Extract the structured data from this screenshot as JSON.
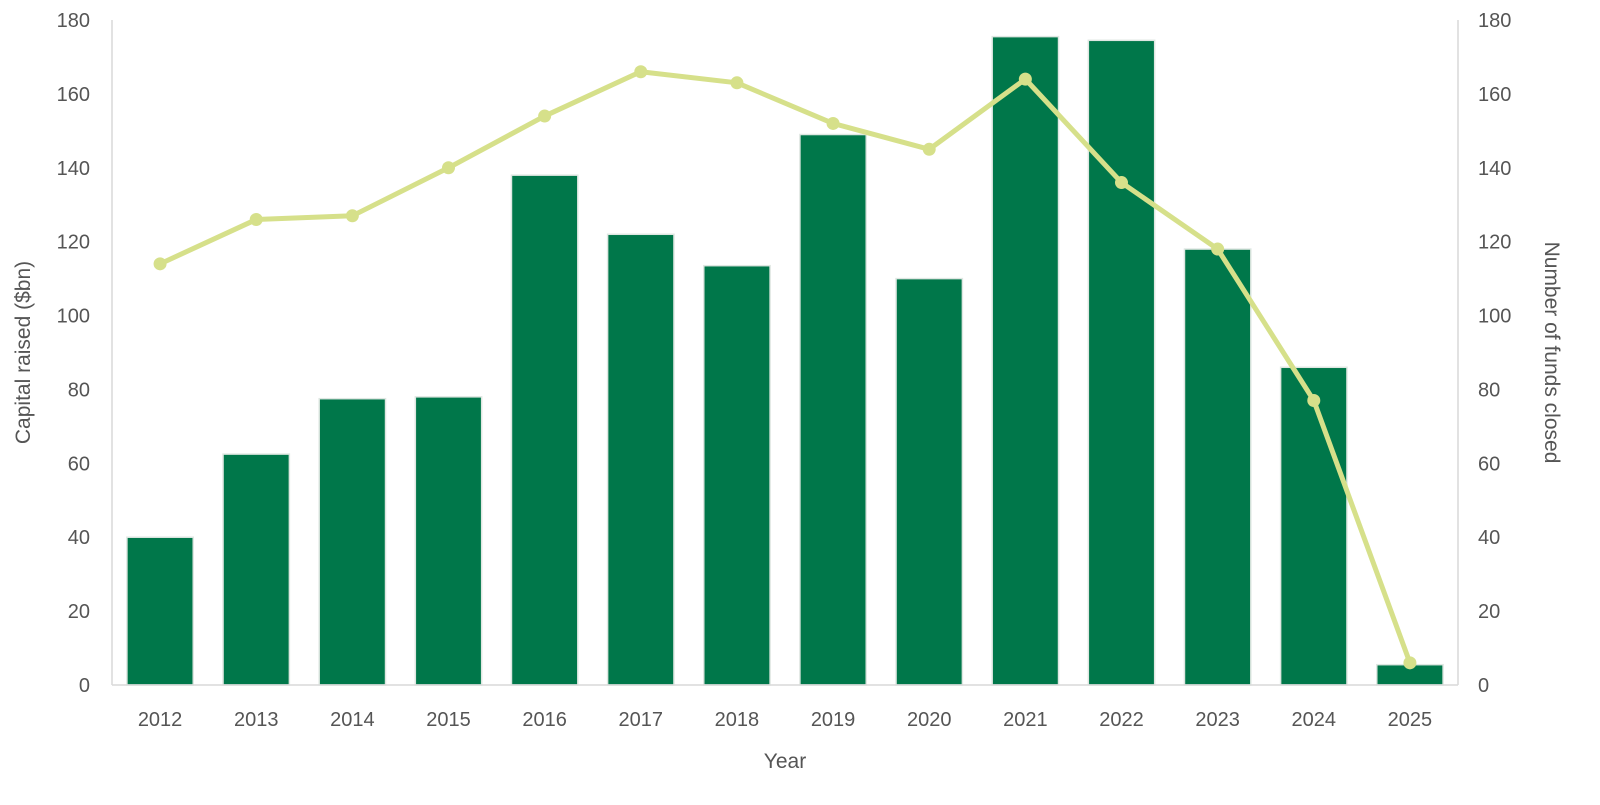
{
  "chart_data": {
    "type": "bar+line",
    "categories": [
      "2012",
      "2013",
      "2014",
      "2015",
      "2016",
      "2017",
      "2018",
      "2019",
      "2020",
      "2021",
      "2022",
      "2023",
      "2024",
      "2025"
    ],
    "series": [
      {
        "type": "bar",
        "axis": "left",
        "color": "#00774a",
        "values": [
          40,
          62.5,
          77.5,
          78,
          138,
          122,
          113.5,
          149,
          110,
          175.5,
          174.5,
          118,
          86,
          5.5
        ]
      },
      {
        "type": "line",
        "axis": "right",
        "color": "#d6e08a",
        "values": [
          114,
          126,
          127,
          140,
          154,
          166,
          163,
          152,
          145,
          164,
          136,
          118,
          77,
          6
        ]
      }
    ],
    "xlabel": "Year",
    "ylabel": "Capital raised ($bn)",
    "y2label": "Number of funds closed",
    "ylim": [
      0,
      180
    ],
    "y2lim": [
      0,
      180
    ],
    "yticks": [
      "0",
      "20",
      "40",
      "60",
      "80",
      "100",
      "120",
      "140",
      "160",
      "180"
    ],
    "y2ticks": [
      "0",
      "20",
      "40",
      "60",
      "80",
      "100",
      "120",
      "140",
      "160",
      "180"
    ],
    "grid": false,
    "legend": "none"
  }
}
